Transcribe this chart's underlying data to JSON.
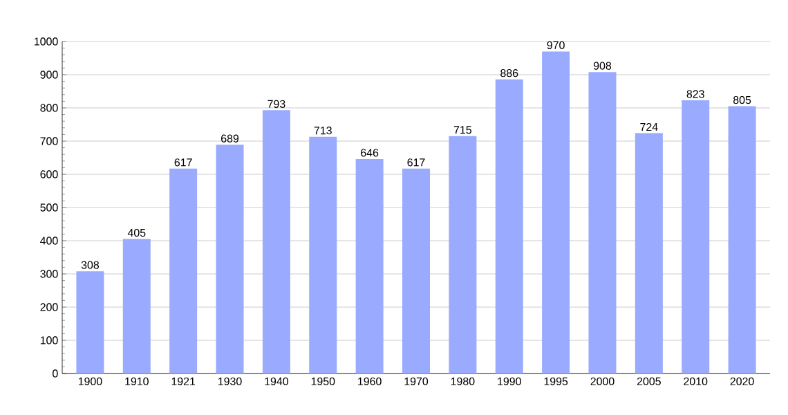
{
  "chart_data": {
    "type": "bar",
    "categories": [
      "1900",
      "1910",
      "1921",
      "1930",
      "1940",
      "1950",
      "1960",
      "1970",
      "1980",
      "1990",
      "1995",
      "2000",
      "2005",
      "2010",
      "2020"
    ],
    "values": [
      308,
      405,
      617,
      689,
      793,
      713,
      646,
      617,
      715,
      886,
      970,
      908,
      724,
      823,
      805
    ],
    "color": "#99aaff",
    "ylim": [
      0,
      1000
    ],
    "yticks": [
      0,
      100,
      200,
      300,
      400,
      500,
      600,
      700,
      800,
      900,
      1000
    ],
    "grid": "y",
    "data_labels": true
  }
}
